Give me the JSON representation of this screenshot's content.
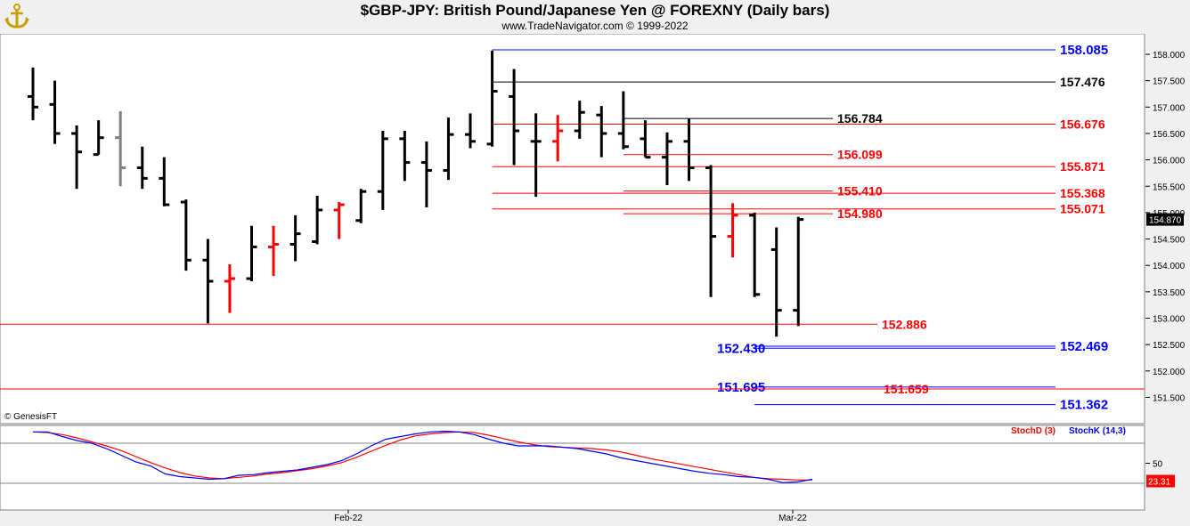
{
  "header": {
    "title": "$GBP-JPY:  British Pound/Japanese Yen @ FOREXNY  (Daily bars)",
    "subtitle": "www.TradeNavigator.com © 1999-2022",
    "logo_icon": "trade-navigator-anchor-logo"
  },
  "credit": "© GenesisFT",
  "colors": {
    "background": "#f0f0f0",
    "panel": "#ffffff",
    "bar_up_down": "#000000",
    "bar_red": "#ff0000",
    "bar_gray": "#808080",
    "blue": "#0000ff",
    "red": "#ff0000"
  },
  "chart_data": {
    "type": "ohlc",
    "title": "$GBP-JPY:  British Pound/Japanese Yen @ FOREXNY  (Daily bars)",
    "ylim": [
      151.3,
      158.2
    ],
    "y_ticks": [
      "158.000",
      "157.500",
      "157.000",
      "156.500",
      "156.000",
      "155.500",
      "155.000",
      "154.500",
      "154.000",
      "153.500",
      "153.000",
      "152.500",
      "152.000",
      "151.500"
    ],
    "x_ticks": [
      "Feb-22",
      "Mar-22"
    ],
    "last_price": "154.870",
    "bars": [
      {
        "o": 157.2,
        "h": 157.75,
        "l": 156.75,
        "c": 157.0,
        "color": "black"
      },
      {
        "o": 157.05,
        "h": 157.5,
        "l": 156.3,
        "c": 156.5,
        "color": "black"
      },
      {
        "o": 156.5,
        "h": 156.65,
        "l": 155.45,
        "c": 156.15,
        "color": "black"
      },
      {
        "o": 156.1,
        "h": 156.75,
        "l": 156.1,
        "c": 156.42,
        "color": "black"
      },
      {
        "o": 156.42,
        "h": 156.92,
        "l": 155.5,
        "c": 155.85,
        "color": "gray"
      },
      {
        "o": 155.85,
        "h": 156.25,
        "l": 155.45,
        "c": 155.65,
        "color": "black"
      },
      {
        "o": 155.65,
        "h": 156.05,
        "l": 155.12,
        "c": 155.15,
        "color": "black"
      },
      {
        "o": 155.2,
        "h": 155.25,
        "l": 153.9,
        "c": 154.1,
        "color": "black"
      },
      {
        "o": 154.1,
        "h": 154.5,
        "l": 152.9,
        "c": 153.7,
        "color": "black"
      },
      {
        "o": 153.7,
        "h": 154.02,
        "l": 153.1,
        "c": 153.75,
        "color": "red"
      },
      {
        "o": 153.75,
        "h": 154.75,
        "l": 153.7,
        "c": 154.35,
        "color": "black"
      },
      {
        "o": 154.35,
        "h": 154.75,
        "l": 153.8,
        "c": 154.4,
        "color": "red"
      },
      {
        "o": 154.4,
        "h": 154.95,
        "l": 154.08,
        "c": 154.6,
        "color": "black"
      },
      {
        "o": 154.45,
        "h": 155.32,
        "l": 154.4,
        "c": 155.05,
        "color": "black"
      },
      {
        "o": 155.05,
        "h": 155.2,
        "l": 154.5,
        "c": 155.15,
        "color": "red"
      },
      {
        "o": 154.85,
        "h": 155.45,
        "l": 154.8,
        "c": 155.4,
        "color": "black"
      },
      {
        "o": 155.4,
        "h": 156.55,
        "l": 155.05,
        "c": 156.4,
        "color": "black"
      },
      {
        "o": 156.4,
        "h": 156.55,
        "l": 155.6,
        "c": 155.95,
        "color": "black"
      },
      {
        "o": 155.95,
        "h": 156.35,
        "l": 155.1,
        "c": 155.8,
        "color": "black"
      },
      {
        "o": 155.8,
        "h": 156.8,
        "l": 155.62,
        "c": 156.48,
        "color": "black"
      },
      {
        "o": 156.48,
        "h": 156.88,
        "l": 156.22,
        "c": 156.35,
        "color": "black"
      },
      {
        "o": 156.3,
        "h": 158.07,
        "l": 156.25,
        "c": 157.3,
        "color": "black"
      },
      {
        "o": 157.2,
        "h": 157.72,
        "l": 155.9,
        "c": 156.55,
        "color": "black"
      },
      {
        "o": 156.35,
        "h": 156.88,
        "l": 155.3,
        "c": 156.35,
        "color": "black"
      },
      {
        "o": 156.35,
        "h": 156.85,
        "l": 155.97,
        "c": 156.55,
        "color": "red"
      },
      {
        "o": 156.55,
        "h": 157.12,
        "l": 156.4,
        "c": 156.9,
        "color": "black"
      },
      {
        "o": 156.85,
        "h": 157.02,
        "l": 156.05,
        "c": 156.5,
        "color": "black"
      },
      {
        "o": 156.5,
        "h": 157.3,
        "l": 156.2,
        "c": 156.25,
        "color": "black"
      },
      {
        "o": 156.4,
        "h": 156.75,
        "l": 156.05,
        "c": 156.05,
        "color": "black"
      },
      {
        "o": 156.05,
        "h": 156.52,
        "l": 155.52,
        "c": 156.35,
        "color": "black"
      },
      {
        "o": 156.35,
        "h": 156.78,
        "l": 155.6,
        "c": 155.85,
        "color": "black"
      },
      {
        "o": 155.85,
        "h": 155.9,
        "l": 153.4,
        "c": 154.55,
        "color": "black"
      },
      {
        "o": 154.55,
        "h": 155.18,
        "l": 154.15,
        "c": 154.95,
        "color": "red"
      },
      {
        "o": 154.95,
        "h": 155.0,
        "l": 153.4,
        "c": 153.45,
        "color": "black"
      },
      {
        "o": 154.3,
        "h": 154.72,
        "l": 152.65,
        "c": 153.15,
        "color": "black"
      },
      {
        "o": 153.15,
        "h": 154.92,
        "l": 152.85,
        "c": 154.87,
        "color": "black"
      }
    ],
    "levels": [
      {
        "label": "158.085",
        "value": 158.085,
        "color": "blue",
        "start": 21,
        "label_side": "right"
      },
      {
        "label": "157.476",
        "value": 157.476,
        "color": "black",
        "start": 21,
        "label_side": "right"
      },
      {
        "label": "156.784",
        "value": 156.784,
        "color": "black",
        "start": 27,
        "label_side": "mid"
      },
      {
        "label": "156.676",
        "value": 156.676,
        "color": "red",
        "start": 21,
        "label_side": "right"
      },
      {
        "label": "156.099",
        "value": 156.099,
        "color": "red",
        "start": 27,
        "label_side": "mid"
      },
      {
        "label": "155.871",
        "value": 155.871,
        "color": "red",
        "start": 21,
        "label_side": "right"
      },
      {
        "label": "155.410",
        "value": 155.41,
        "color": "red",
        "start": 27,
        "label_side": "mid"
      },
      {
        "label": "155.368",
        "value": 155.368,
        "color": "red",
        "start": 21,
        "label_side": "right"
      },
      {
        "label": "154.980",
        "value": 154.98,
        "color": "red",
        "start": 27,
        "label_side": "mid"
      },
      {
        "label": "155.071",
        "value": 155.071,
        "color": "red",
        "start": 21,
        "label_side": "right"
      },
      {
        "label": "152.886",
        "value": 152.886,
        "color": "red",
        "start": -1,
        "label_side": "mid"
      },
      {
        "label": "152.430",
        "value": 152.43,
        "color": "blue",
        "start": 33,
        "label_side": "left"
      },
      {
        "label": "152.469",
        "value": 152.469,
        "color": "blue",
        "start": 33,
        "label_side": "right"
      },
      {
        "label": "151.695",
        "value": 151.695,
        "color": "blue",
        "start": 33,
        "label_side": "left"
      },
      {
        "label": "151.659",
        "value": 151.659,
        "color": "red",
        "start": -1,
        "label_side": "mid"
      },
      {
        "label": "151.362",
        "value": 151.362,
        "color": "blue",
        "start": 33,
        "label_side": "right"
      }
    ],
    "oscillator": {
      "ylim": [
        0,
        100
      ],
      "y_ticks": [
        "50"
      ],
      "last_value": "23.31",
      "legend": [
        "StochD (3)",
        "StochK (14,3)"
      ],
      "stochD": [
        97,
        96,
        93,
        88,
        82,
        76,
        69,
        60,
        51,
        43,
        36,
        31,
        28,
        27,
        29,
        31,
        34,
        36,
        39,
        42,
        46,
        51,
        59,
        68,
        77,
        85,
        91,
        94,
        96,
        97,
        96,
        92,
        87,
        82,
        78,
        75,
        74,
        73,
        72,
        70,
        67,
        62,
        57,
        53,
        49,
        45,
        41,
        37,
        33,
        29,
        27,
        26,
        25,
        25
      ],
      "stochK": [
        97,
        97,
        90,
        84,
        80,
        72,
        62,
        52,
        46,
        34,
        30,
        28,
        26,
        27,
        32,
        33,
        36,
        38,
        40,
        44,
        48,
        54,
        64,
        76,
        86,
        90,
        94,
        97,
        98,
        97,
        93,
        86,
        80,
        76,
        76,
        76,
        74,
        72,
        68,
        64,
        58,
        54,
        50,
        46,
        42,
        38,
        35,
        33,
        30,
        29,
        26,
        21,
        22,
        26
      ]
    }
  }
}
